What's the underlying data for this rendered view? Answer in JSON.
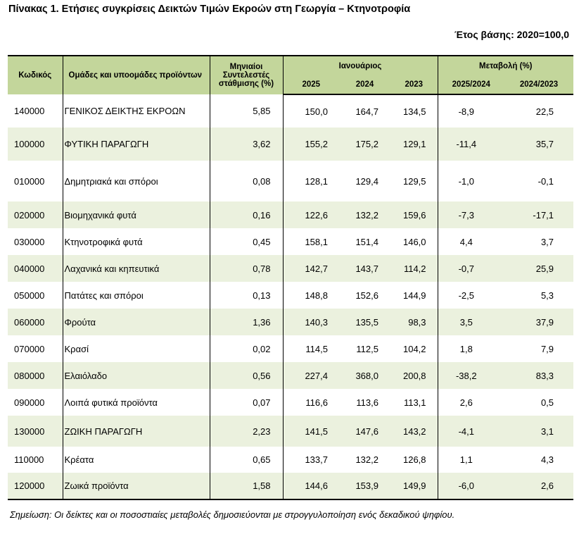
{
  "title": "Πίνακας 1. Ετήσιες συγκρίσεις Δεικτών Τιμών Εκροών στη Γεωργία – Κτηνοτροφία",
  "base_year": "Έτος βάσης: 2020=100,0",
  "headers": {
    "code": "Κωδικός",
    "groups": "Ομάδες και υποομάδες προϊόντων",
    "weights": "Μηνιαίοι Συντελεστές στάθμισης (%)",
    "january": "Ιανουάριος",
    "y2025": "2025",
    "y2024": "2024",
    "y2023": "2023",
    "change": "Μεταβολή (%)",
    "ch_2025_2024": "2025/2024",
    "ch_2024_2023": "2024/2023"
  },
  "rows": [
    {
      "code": "140000",
      "name": "ΓΕΝΙΚΟΣ ΔΕΙΚΤΗΣ ΕΚΡΟΩΝ",
      "weight": "5,85",
      "y2025": "150,0",
      "y2024": "164,7",
      "y2023": "134,5",
      "ch1": "-8,9",
      "ch2": "22,5"
    },
    {
      "code": "100000",
      "name": "ΦΥΤΙΚΗ ΠΑΡΑΓΩΓΗ",
      "weight": "3,62",
      "y2025": "155,2",
      "y2024": "175,2",
      "y2023": "129,1",
      "ch1": "-11,4",
      "ch2": "35,7"
    },
    {
      "code": "010000",
      "name": "Δημητριακά και σπόροι",
      "weight": "0,08",
      "y2025": "128,1",
      "y2024": "129,4",
      "y2023": "129,5",
      "ch1": "-1,0",
      "ch2": "-0,1"
    },
    {
      "code": "020000",
      "name": "Βιομηχανικά φυτά",
      "weight": "0,16",
      "y2025": "122,6",
      "y2024": "132,2",
      "y2023": "159,6",
      "ch1": "-7,3",
      "ch2": "-17,1"
    },
    {
      "code": "030000",
      "name": "Κτηνοτροφικά φυτά",
      "weight": "0,45",
      "y2025": "158,1",
      "y2024": "151,4",
      "y2023": "146,0",
      "ch1": "4,4",
      "ch2": "3,7"
    },
    {
      "code": "040000",
      "name": "Λαχανικά και κηπευτικά",
      "weight": "0,78",
      "y2025": "142,7",
      "y2024": "143,7",
      "y2023": "114,2",
      "ch1": "-0,7",
      "ch2": "25,9"
    },
    {
      "code": "050000",
      "name": "Πατάτες και σπόροι",
      "weight": "0,13",
      "y2025": "148,8",
      "y2024": "152,6",
      "y2023": "144,9",
      "ch1": "-2,5",
      "ch2": "5,3"
    },
    {
      "code": "060000",
      "name": "Φρούτα",
      "weight": "1,36",
      "y2025": "140,3",
      "y2024": "135,5",
      "y2023": "98,3",
      "ch1": "3,5",
      "ch2": "37,9"
    },
    {
      "code": "070000",
      "name": "Κρασί",
      "weight": "0,02",
      "y2025": "114,5",
      "y2024": "112,5",
      "y2023": "104,2",
      "ch1": "1,8",
      "ch2": "7,9"
    },
    {
      "code": "080000",
      "name": "Ελαιόλαδο",
      "weight": "0,56",
      "y2025": "227,4",
      "y2024": "368,0",
      "y2023": "200,8",
      "ch1": "-38,2",
      "ch2": "83,3"
    },
    {
      "code": "090000",
      "name": "Λοιπά φυτικά προϊόντα",
      "weight": "0,07",
      "y2025": "116,6",
      "y2024": "113,6",
      "y2023": "113,1",
      "ch1": "2,6",
      "ch2": "0,5"
    },
    {
      "code": "130000",
      "name": "ΖΩΙΚΗ ΠΑΡΑΓΩΓΗ",
      "weight": "2,23",
      "y2025": "141,5",
      "y2024": "147,6",
      "y2023": "143,2",
      "ch1": "-4,1",
      "ch2": "3,1"
    },
    {
      "code": "110000",
      "name": "Κρέατα",
      "weight": "0,65",
      "y2025": "133,7",
      "y2024": "132,2",
      "y2023": "126,8",
      "ch1": "1,1",
      "ch2": "4,3"
    },
    {
      "code": "120000",
      "name": "Ζωικά προϊόντα",
      "weight": "1,58",
      "y2025": "144,6",
      "y2024": "153,9",
      "y2023": "149,9",
      "ch1": "-6,0",
      "ch2": "2,6"
    }
  ],
  "note": "Σημείωση: Οι δείκτες και οι ποσοστιαίες μεταβολές δημοσιεύονται με στρογγυλοποίηση ενός δεκαδικού ψηφίου.",
  "colors": {
    "header_bg": "#c3d69b",
    "shade_bg": "#ebf1de"
  }
}
